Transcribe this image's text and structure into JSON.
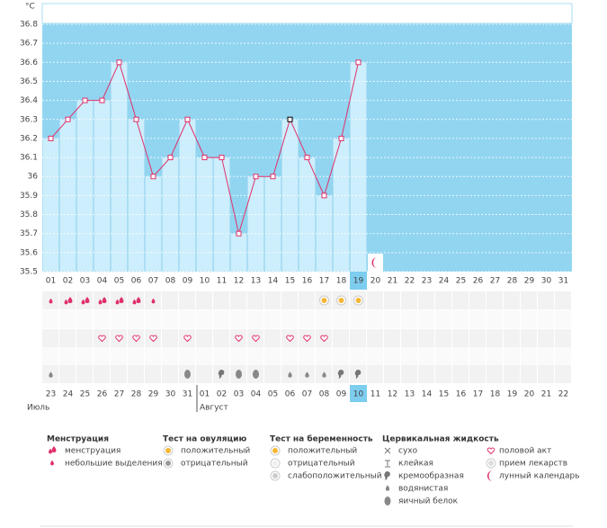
{
  "chart_data": {
    "type": "line",
    "ylabel": "°C",
    "categories": [
      "01",
      "02",
      "03",
      "04",
      "05",
      "06",
      "07",
      "08",
      "09",
      "10",
      "11",
      "12",
      "13",
      "14",
      "15",
      "16",
      "17",
      "18",
      "19",
      "20",
      "21",
      "22",
      "23",
      "24",
      "25",
      "26",
      "27",
      "28",
      "29",
      "30",
      "31"
    ],
    "values": [
      36.2,
      36.3,
      36.4,
      36.4,
      36.6,
      36.3,
      36.0,
      36.1,
      36.3,
      36.1,
      36.1,
      35.7,
      36.0,
      36.0,
      36.3,
      36.1,
      35.9,
      36.2,
      36.6,
      null,
      null,
      null,
      null,
      null,
      null,
      null,
      null,
      null,
      null,
      null,
      null
    ],
    "color": "#e0306a",
    "bar_color": "#cdeefc",
    "background": "#92d5f1",
    "ylim": [
      35.5,
      36.8
    ],
    "yticks": [
      35.5,
      35.6,
      35.7,
      35.8,
      35.9,
      36,
      36.1,
      36.2,
      36.3,
      36.4,
      36.5,
      36.6,
      36.7,
      36.8
    ],
    "grid": true
  },
  "calendar": {
    "dates": [
      "23",
      "24",
      "25",
      "26",
      "27",
      "28",
      "29",
      "30",
      "31",
      "01",
      "02",
      "03",
      "04",
      "05",
      "06",
      "07",
      "08",
      "09",
      "10",
      "11",
      "12",
      "13",
      "14",
      "15",
      "16",
      "17",
      "18",
      "19",
      "20",
      "21",
      "22"
    ],
    "months": [
      "Июль",
      "Август"
    ]
  },
  "legend": [
    {
      "title": "Менструация",
      "items": [
        "менструация",
        "небольшие выделения"
      ]
    },
    {
      "title": "Тест на овуляцию",
      "items": [
        "положительный",
        "отрицательный"
      ]
    },
    {
      "title": "Тест на беременность",
      "items": [
        "положительный",
        "отрицательный",
        "слабоположительный"
      ]
    },
    {
      "title": "Цервикальная жидкость",
      "items": [
        "сухо",
        "клейкая",
        "кремообразная",
        "водянистая",
        "яичный белок"
      ]
    },
    {
      "items": [
        "половой акт",
        "прием лекарств",
        "лунный календарь"
      ]
    }
  ]
}
